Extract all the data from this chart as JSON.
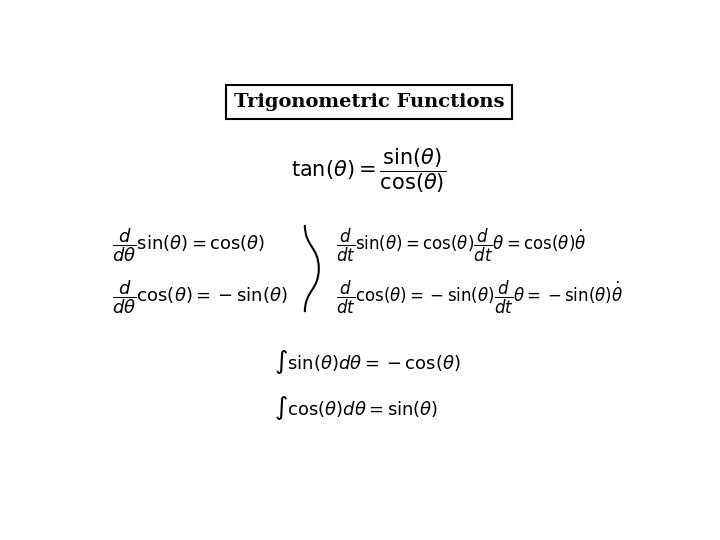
{
  "title": "Trigonometric Functions",
  "bg_color": "#ffffff",
  "text_color": "#000000",
  "figsize": [
    7.2,
    5.4
  ],
  "dpi": 100,
  "fontsize_title": 14,
  "fontsize_eq": 13,
  "fontsize_eq_small": 11
}
